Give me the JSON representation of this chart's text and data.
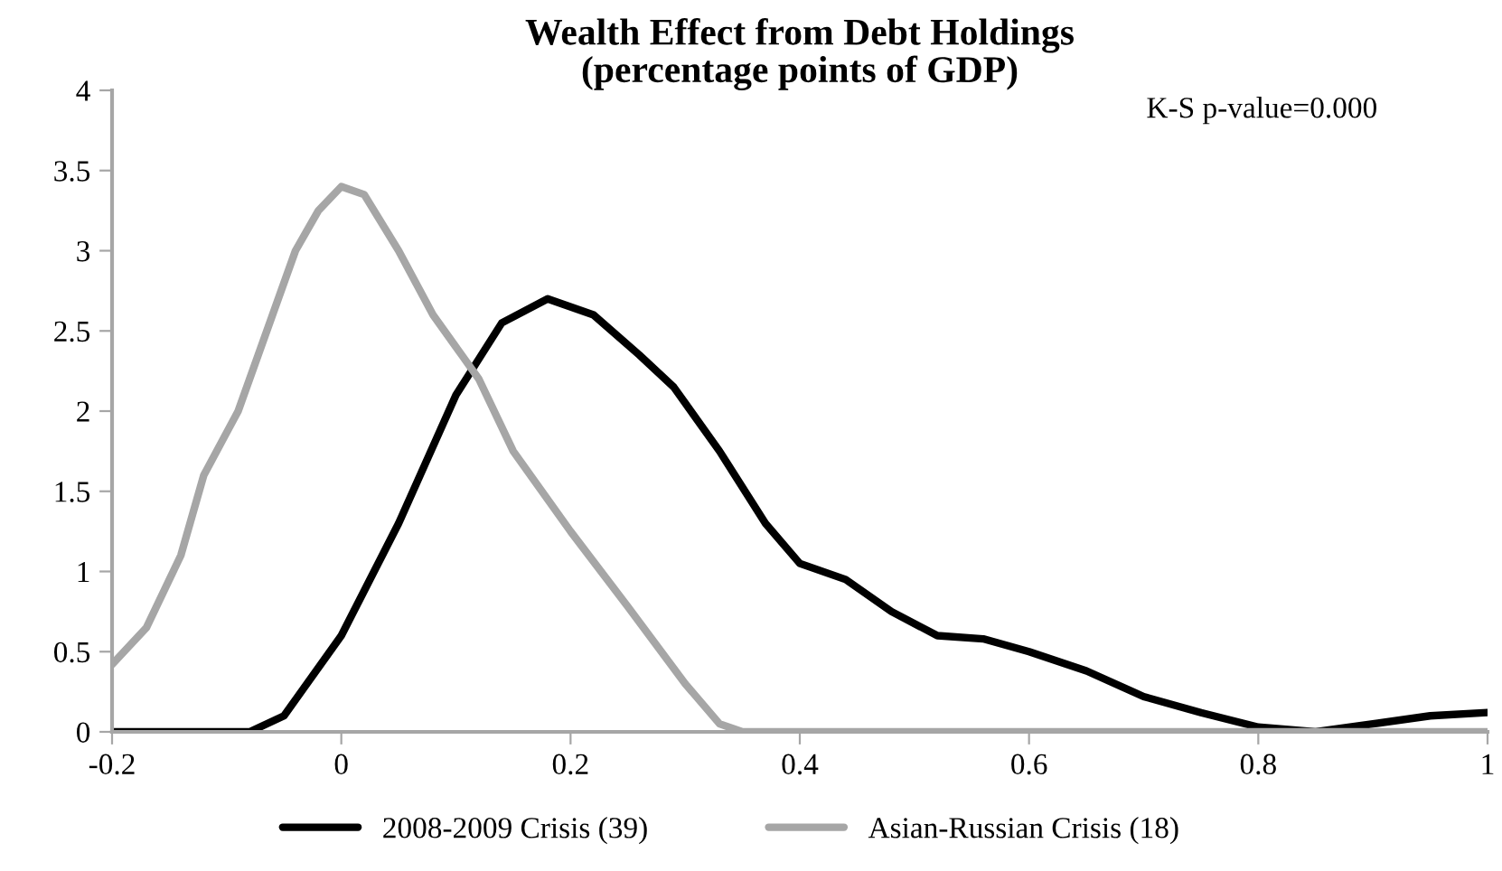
{
  "chart_data": {
    "type": "line",
    "title": "Wealth Effect from Debt Holdings\n(percentage points of GDP)",
    "annotations": [
      "K-S p-value=0.000"
    ],
    "xlim": [
      -0.2,
      1
    ],
    "xticks": [
      -0.2,
      0,
      0.2,
      0.4,
      0.6,
      0.8,
      1
    ],
    "ylim": [
      0,
      4
    ],
    "yticks": [
      0,
      0.5,
      1,
      1.5,
      2,
      2.5,
      3,
      3.5,
      4
    ],
    "grid": false,
    "legend": "bottom",
    "marker": "none",
    "line_style": "solid",
    "series": [
      {
        "name": "2008-2009 Crisis (39)",
        "color": "#000000",
        "x": [
          -0.2,
          -0.08,
          -0.05,
          0,
          0.05,
          0.1,
          0.14,
          0.18,
          0.22,
          0.26,
          0.29,
          0.33,
          0.37,
          0.4,
          0.44,
          0.48,
          0.52,
          0.56,
          0.6,
          0.65,
          0.7,
          0.75,
          0.8,
          0.85,
          0.9,
          0.95,
          1
        ],
        "values": [
          0,
          0,
          0.1,
          0.6,
          1.3,
          2.1,
          2.55,
          2.7,
          2.6,
          2.35,
          2.15,
          1.75,
          1.3,
          1.05,
          0.95,
          0.75,
          0.6,
          0.58,
          0.5,
          0.38,
          0.22,
          0.12,
          0.03,
          0,
          0.05,
          0.1,
          0.12
        ]
      },
      {
        "name": "Asian-Russian Crisis (18)",
        "color": "#a6a6a6",
        "x": [
          -0.2,
          -0.17,
          -0.14,
          -0.12,
          -0.09,
          -0.06,
          -0.04,
          -0.02,
          0,
          0.02,
          0.05,
          0.08,
          0.1,
          0.12,
          0.15,
          0.2,
          0.25,
          0.3,
          0.33,
          0.35,
          0.4,
          1
        ],
        "values": [
          0.42,
          0.65,
          1.1,
          1.6,
          2.0,
          2.6,
          3.0,
          3.25,
          3.4,
          3.35,
          3.0,
          2.6,
          2.4,
          2.2,
          1.75,
          1.25,
          0.78,
          0.3,
          0.05,
          0,
          0,
          0
        ]
      }
    ]
  }
}
